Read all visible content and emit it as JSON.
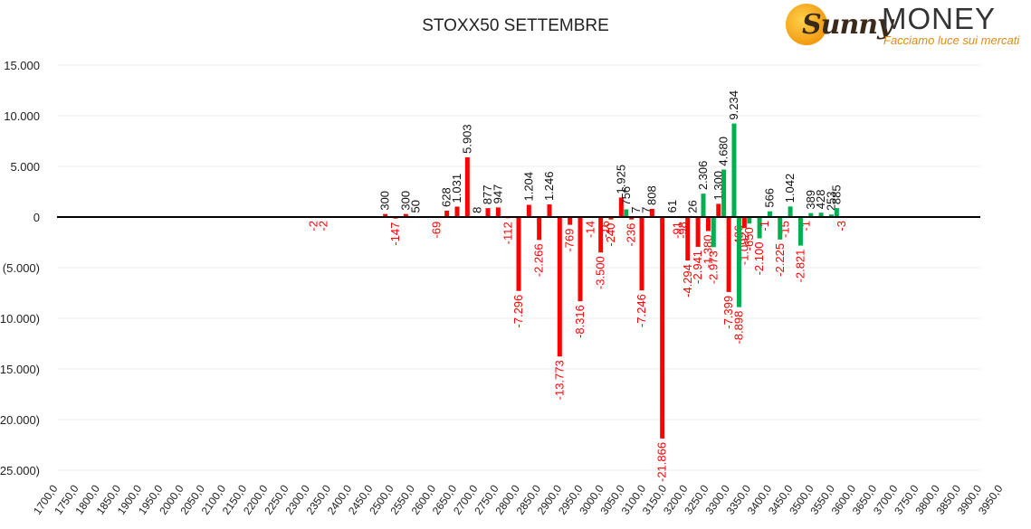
{
  "chart_data": {
    "type": "bar",
    "title": "STOXX50 SETTEMBRE",
    "xlabel": "",
    "ylabel": "",
    "ylim": [
      -25000,
      15000
    ],
    "y_ticks": [
      {
        "v": 15000,
        "label": "15.000"
      },
      {
        "v": 10000,
        "label": "10.000"
      },
      {
        "v": 5000,
        "label": "5.000"
      },
      {
        "v": 0,
        "label": "0"
      },
      {
        "v": -5000,
        "label": "(5.000)"
      },
      {
        "v": -10000,
        "label": "(10.000)"
      },
      {
        "v": -15000,
        "label": "(15.000)"
      },
      {
        "v": -20000,
        "label": "(20.000)"
      },
      {
        "v": -25000,
        "label": "(25.000)"
      }
    ],
    "x_ticks": [
      "1700,0",
      "1750,0",
      "1800,0",
      "1850,0",
      "1900,0",
      "1950,0",
      "2000,0",
      "2050,0",
      "2100,0",
      "2150,0",
      "2200,0",
      "2250,0",
      "2300,0",
      "2350,0",
      "2400,0",
      "2450,0",
      "2500,0",
      "2550,0",
      "2600,0",
      "2650,0",
      "2700,0",
      "2750,0",
      "2800,0",
      "2850,0",
      "2900,0",
      "2950,0",
      "3000,0",
      "3050,0",
      "3100,0",
      "3150,0",
      "3200,0",
      "3250,0",
      "3300,0",
      "3350,0",
      "3400,0",
      "3450,0",
      "3500,0",
      "3550,0",
      "3600,0",
      "3650,0",
      "3700,0",
      "3750,0",
      "3800,0",
      "3850,0",
      "3900,0",
      "3950,0"
    ],
    "grid": true,
    "colors": {
      "negative": "#ff0000",
      "positive_red": "#ee1111",
      "green": "#00b050",
      "axis": "#000000",
      "grid": "#eeeeee",
      "neg_label": "#ff0000",
      "tick": "#222222"
    },
    "series": [
      {
        "color_key": "red",
        "points": [
          {
            "x": 2325,
            "y": -2,
            "label": "-2"
          },
          {
            "x": 2350,
            "y": -2,
            "label": "-2"
          },
          {
            "x": 2500,
            "y": 300,
            "label": "300"
          },
          {
            "x": 2525,
            "y": -147,
            "label": "-147"
          },
          {
            "x": 2550,
            "y": 300,
            "label": "300"
          },
          {
            "x": 2575,
            "y": 50,
            "label": "50"
          },
          {
            "x": 2625,
            "y": -69,
            "label": "-69"
          },
          {
            "x": 2650,
            "y": 628,
            "label": "628"
          },
          {
            "x": 2675,
            "y": 1031,
            "label": "1.031"
          },
          {
            "x": 2700,
            "y": 5903,
            "label": "5.903"
          },
          {
            "x": 2725,
            "y": 8,
            "label": "8"
          },
          {
            "x": 2750,
            "y": 877,
            "label": "877"
          },
          {
            "x": 2775,
            "y": 947,
            "label": "947"
          },
          {
            "x": 2800,
            "y": -112,
            "label": "-112"
          },
          {
            "x": 2825,
            "y": -7296,
            "label": "-7.296"
          },
          {
            "x": 2850,
            "y": 1204,
            "label": "1.204"
          },
          {
            "x": 2875,
            "y": -2266,
            "label": "-2.266"
          },
          {
            "x": 2900,
            "y": 1246,
            "label": "1.246"
          },
          {
            "x": 2925,
            "y": -13773,
            "label": "-13.773"
          },
          {
            "x": 2950,
            "y": -769,
            "label": "-769"
          },
          {
            "x": 2975,
            "y": -8316,
            "label": "-8.316"
          },
          {
            "x": 3000,
            "y": -14,
            "label": "-14"
          },
          {
            "x": 3025,
            "y": -3500,
            "label": "-3.500"
          },
          {
            "x": 3037,
            "y": -16,
            "label": "-16"
          },
          {
            "x": 3050,
            "y": -240,
            "label": "-240"
          },
          {
            "x": 3075,
            "y": 1925,
            "label": "1.925"
          },
          {
            "x": 3100,
            "y": -236,
            "label": "-236"
          },
          {
            "x": 3125,
            "y": -7246,
            "label": "-7.246"
          },
          {
            "x": 3150,
            "y": 808,
            "label": "808"
          },
          {
            "x": 3175,
            "y": -21866,
            "label": "-21.866"
          },
          {
            "x": 3200,
            "y": 61,
            "label": "61"
          },
          {
            "x": 3212,
            "y": -91,
            "label": "-91"
          },
          {
            "x": 3225,
            "y": -98,
            "label": "-98"
          },
          {
            "x": 3237,
            "y": -4294,
            "label": "-4.294"
          },
          {
            "x": 3262,
            "y": -2941,
            "label": "-2.941"
          },
          {
            "x": 3287,
            "y": -1380,
            "label": "-1.380"
          },
          {
            "x": 3312,
            "y": 1300,
            "label": "1.300"
          },
          {
            "x": 3337,
            "y": -7399,
            "label": "-7.399"
          },
          {
            "x": 3362,
            "y": -426,
            "label": "-426"
          },
          {
            "x": 3375,
            "y": -1092,
            "label": "-1.092"
          },
          {
            "x": 3475,
            "y": -15,
            "label": "-15"
          },
          {
            "x": 3525,
            "y": -1,
            "label": "-1"
          },
          {
            "x": 3612,
            "y": -3,
            "label": "-3"
          }
        ]
      },
      {
        "color_key": "green",
        "points": [
          {
            "x": 3087,
            "y": 756,
            "label": "756"
          },
          {
            "x": 3112,
            "y": 7,
            "label": "7"
          },
          {
            "x": 3137,
            "y": 7,
            "label": "7"
          },
          {
            "x": 3250,
            "y": 26,
            "label": "26"
          },
          {
            "x": 3275,
            "y": 2306,
            "label": "2.306"
          },
          {
            "x": 3300,
            "y": -2973,
            "label": "-2.973"
          },
          {
            "x": 3325,
            "y": 4680,
            "label": "4.680"
          },
          {
            "x": 3350,
            "y": 9234,
            "label": "9.234"
          },
          {
            "x": 3362,
            "y": -8898,
            "label": "-8.898"
          },
          {
            "x": 3387,
            "y": -650,
            "label": "-650"
          },
          {
            "x": 3412,
            "y": -2100,
            "label": "-2.100"
          },
          {
            "x": 3425,
            "y": -1,
            "label": "-1"
          },
          {
            "x": 3437,
            "y": 566,
            "label": "566"
          },
          {
            "x": 3462,
            "y": -2225,
            "label": "-2.225"
          },
          {
            "x": 3487,
            "y": 1042,
            "label": "1.042"
          },
          {
            "x": 3512,
            "y": -2821,
            "label": "-2.821"
          },
          {
            "x": 3537,
            "y": 389,
            "label": "389"
          },
          {
            "x": 3562,
            "y": 428,
            "label": "428"
          },
          {
            "x": 3587,
            "y": 253,
            "label": "253"
          },
          {
            "x": 3600,
            "y": 885,
            "label": "885"
          }
        ]
      }
    ]
  },
  "logo": {
    "script": "Sunny",
    "wordmark": "MONEY",
    "tagline": "Facciamo luce sui mercati"
  }
}
